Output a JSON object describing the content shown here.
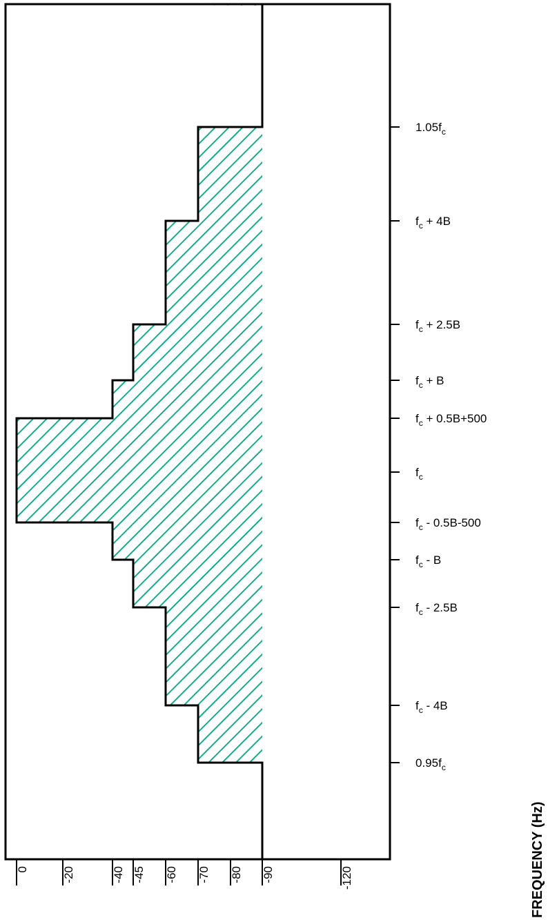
{
  "chart_data": {
    "type": "area",
    "orientation": "frequency-vertical",
    "xlabel": "",
    "ylabel": "FREQUENCY (Hz)",
    "hatch_color": "#1aaa8a",
    "outline_color": "#000000",
    "attenuation_ticks": [
      "0",
      "-20",
      "-40",
      "-45",
      "-60",
      "-70",
      "-80",
      "-90",
      "-120"
    ],
    "attenuation_values": [
      0,
      -20,
      -40,
      -45,
      -60,
      -70,
      -80,
      -90,
      -120
    ],
    "frequency_ticks": [
      {
        "base": "1.05f",
        "sub": "c",
        "suffix": ""
      },
      {
        "base": "f",
        "sub": "c",
        "suffix": " + 4B"
      },
      {
        "base": "f",
        "sub": "c",
        "suffix": " + 2.5B"
      },
      {
        "base": "f",
        "sub": "c",
        "suffix": " + B"
      },
      {
        "base": "f",
        "sub": "c",
        "suffix": " + 0.5B+500"
      },
      {
        "base": "f",
        "sub": "c",
        "suffix": ""
      },
      {
        "base": "f",
        "sub": "c",
        "suffix": " - 0.5B-500"
      },
      {
        "base": "f",
        "sub": "c",
        "suffix": " - B"
      },
      {
        "base": "f",
        "sub": "c",
        "suffix": " - 2.5B"
      },
      {
        "base": "f",
        "sub": "c",
        "suffix": " - 4B"
      },
      {
        "base": "0.95f",
        "sub": "c",
        "suffix": ""
      }
    ],
    "mask_levels_db": [
      -90,
      -70,
      -60,
      -45,
      -40,
      0,
      -40,
      -45,
      -60,
      -70,
      -90,
      -90
    ],
    "mask_segment_bounds": [
      "top",
      0,
      1,
      2,
      3,
      4,
      6,
      7,
      8,
      9,
      10,
      "bottom"
    ]
  }
}
